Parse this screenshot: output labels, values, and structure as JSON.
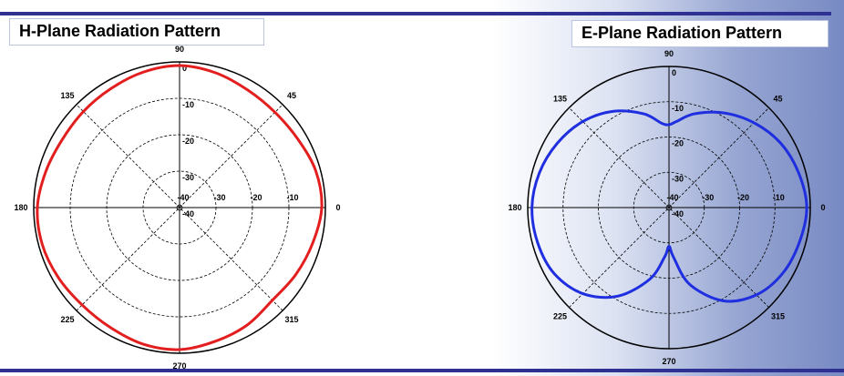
{
  "chart_data": [
    {
      "type": "polar",
      "title": "H-Plane Radiation Pattern",
      "angle_ticks": [
        "0",
        "45",
        "90",
        "135",
        "180",
        "225",
        "270",
        "315"
      ],
      "radial_ticks": [
        "0",
        "-10",
        "-20",
        "-30",
        "-40"
      ],
      "radial_ticks_horizontal": [
        "-40",
        "-30",
        "-20",
        "-10"
      ],
      "rlim": [
        -40,
        0
      ],
      "series": [
        {
          "color": "#e31e1e",
          "points": [
            [
              0,
              -1.0
            ],
            [
              15,
              -1.3
            ],
            [
              30,
              -2.5
            ],
            [
              45,
              -3.0
            ],
            [
              60,
              -2.7
            ],
            [
              75,
              -1.7
            ],
            [
              90,
              -1.0
            ],
            [
              105,
              -1.5
            ],
            [
              120,
              -2.3
            ],
            [
              135,
              -2.7
            ],
            [
              150,
              -2.8
            ],
            [
              165,
              -2.0
            ],
            [
              180,
              -1.0
            ],
            [
              195,
              -1.0
            ],
            [
              210,
              -1.6
            ],
            [
              225,
              -2.2
            ],
            [
              240,
              -2.0
            ],
            [
              255,
              -1.2
            ],
            [
              270,
              -1.0
            ],
            [
              285,
              -2.0
            ],
            [
              300,
              -2.8
            ],
            [
              315,
              -4.0
            ],
            [
              330,
              -3.2
            ],
            [
              345,
              -2.2
            ],
            [
              360,
              -1.0
            ]
          ]
        }
      ]
    },
    {
      "type": "polar",
      "title": "E-Plane Radiation Pattern",
      "angle_ticks": [
        "0",
        "45",
        "90",
        "135",
        "180",
        "225",
        "270",
        "315"
      ],
      "radial_ticks": [
        "0",
        "-10",
        "-20",
        "-30",
        "-40"
      ],
      "radial_ticks_horizontal": [
        "-40",
        "-30",
        "-20",
        "-10"
      ],
      "rlim": [
        -40,
        0
      ],
      "series": [
        {
          "color": "#1f2fe0",
          "points": [
            [
              0,
              -1.0
            ],
            [
              15,
              -2.0
            ],
            [
              30,
              -3.5
            ],
            [
              45,
              -6.0
            ],
            [
              60,
              -9.0
            ],
            [
              75,
              -12.5
            ],
            [
              85,
              -15.5
            ],
            [
              90,
              -16.5
            ],
            [
              95,
              -16.0
            ],
            [
              105,
              -12.5
            ],
            [
              120,
              -8.5
            ],
            [
              135,
              -5.5
            ],
            [
              150,
              -3.5
            ],
            [
              165,
              -2.0
            ],
            [
              180,
              -1.2
            ],
            [
              195,
              -1.5
            ],
            [
              210,
              -2.5
            ],
            [
              225,
              -5.5
            ],
            [
              240,
              -11.0
            ],
            [
              255,
              -19.0
            ],
            [
              265,
              -26.0
            ],
            [
              270,
              -29.0
            ],
            [
              275,
              -26.0
            ],
            [
              285,
              -17.5
            ],
            [
              300,
              -9.5
            ],
            [
              315,
              -5.0
            ],
            [
              330,
              -2.8
            ],
            [
              345,
              -1.8
            ],
            [
              360,
              -1.0
            ]
          ]
        }
      ]
    }
  ]
}
